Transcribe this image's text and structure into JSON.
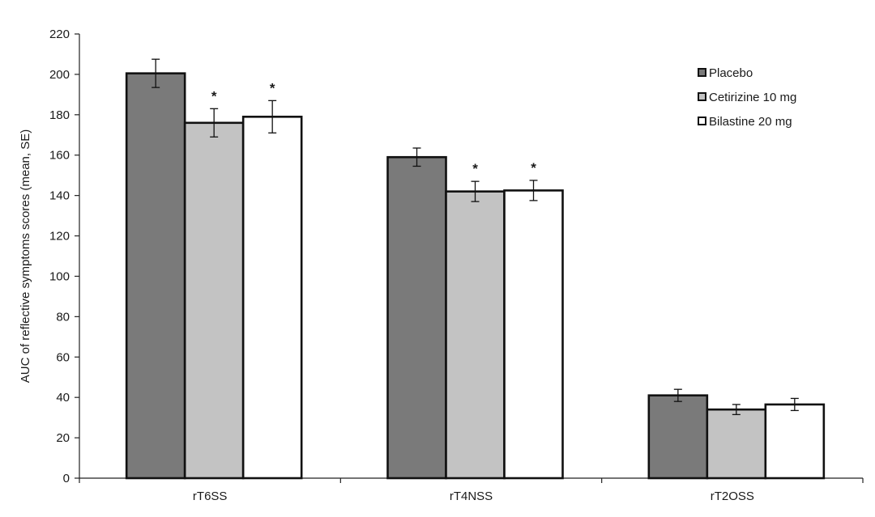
{
  "chart_data": {
    "type": "bar",
    "title": "",
    "xlabel": "",
    "ylabel": "AUC of reflective symptoms scores (mean, SE)",
    "ylim": [
      0,
      220
    ],
    "yticks": [
      0,
      20,
      40,
      60,
      80,
      100,
      120,
      140,
      160,
      180,
      200,
      220
    ],
    "categories": [
      "rT6SS",
      "rT4NSS",
      "rT2OSS"
    ],
    "series": [
      {
        "name": "Placebo",
        "color": "#7a7a7a",
        "values": [
          200.5,
          159.0,
          41.0
        ],
        "errors": [
          7,
          4.5,
          3
        ]
      },
      {
        "name": "Cetirizine 10 mg",
        "color": "#c3c3c3",
        "values": [
          176.0,
          142.0,
          34.0
        ],
        "errors": [
          7,
          5,
          2.5
        ]
      },
      {
        "name": "Bilastine 20 mg",
        "color": "#ffffff",
        "values": [
          179.0,
          142.5,
          36.5
        ],
        "errors": [
          8,
          5,
          3
        ]
      }
    ],
    "significance": [
      {
        "category": 0,
        "series": 1,
        "mark": "*"
      },
      {
        "category": 0,
        "series": 2,
        "mark": "*"
      },
      {
        "category": 1,
        "series": 1,
        "mark": "*"
      },
      {
        "category": 1,
        "series": 2,
        "mark": "*"
      }
    ],
    "legend_position": "top-right",
    "grid": false
  }
}
